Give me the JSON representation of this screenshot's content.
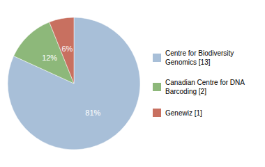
{
  "chart_data": {
    "type": "pie",
    "categories": [
      "Centre for Biodiversity\nGenomics [13]",
      "Canadian Centre for DNA\nBarcoding [2]",
      "Genewiz [1]"
    ],
    "values": [
      81,
      12,
      6
    ],
    "value_labels": [
      "81%",
      "12%",
      "6%"
    ],
    "colors": [
      "#a8bfd8",
      "#8db87a",
      "#c87060"
    ],
    "data_labels": true,
    "legend": "right"
  }
}
